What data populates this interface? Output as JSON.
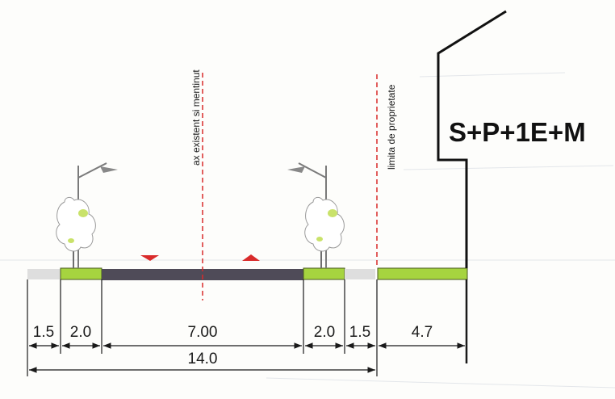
{
  "building_label": "S+P+1E+M",
  "axis_label": "ax existent si mentinut",
  "property_label": "limita de proprietate",
  "segments": [
    {
      "label": "1.5",
      "surface": "sidewalk"
    },
    {
      "label": "2.0",
      "surface": "green"
    },
    {
      "label": "7.00",
      "surface": "roadway"
    },
    {
      "label": "2.0",
      "surface": "green"
    },
    {
      "label": "1.5",
      "surface": "sidewalk"
    },
    {
      "label": "4.7",
      "surface": "green"
    }
  ],
  "total_label": "14.0",
  "colors": {
    "green": "#a6d43f",
    "roadway": "#4f4b58",
    "sidewalk": "#dedede",
    "axis": "#d92b2b",
    "lines": "#1a1a1a"
  }
}
